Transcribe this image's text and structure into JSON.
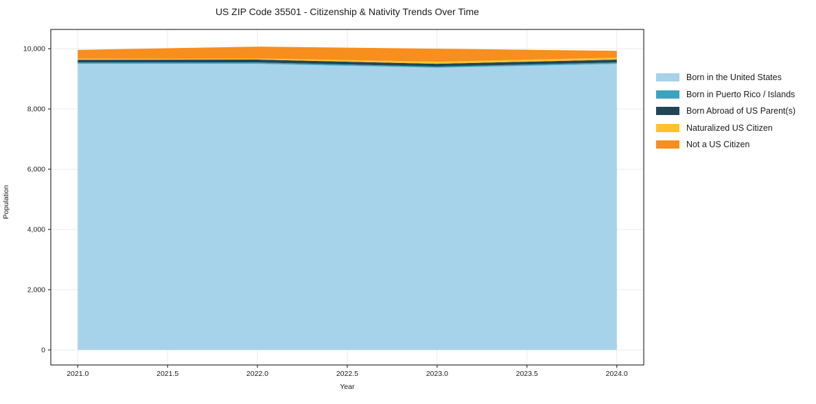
{
  "figure": {
    "background": "#ffffff",
    "text_color": "#1a1a1a",
    "axis_color": "#2e2e2e",
    "grid_color": "#ebebeb"
  },
  "chart_data": {
    "type": "area",
    "stacked": true,
    "title": "US ZIP Code 35501 - Citizenship & Nativity Trends Over Time",
    "xlabel": "Year",
    "ylabel": "Population",
    "x": [
      2021,
      2022,
      2023,
      2024
    ],
    "series": [
      {
        "name": "Born in the United States",
        "color": "#a7d3ea",
        "values": [
          9500,
          9500,
          9370,
          9500
        ]
      },
      {
        "name": "Born in Puerto Rico / Islands",
        "color": "#3ba3c0",
        "values": [
          45,
          45,
          40,
          45
        ]
      },
      {
        "name": "Born Abroad of US Parent(s)",
        "color": "#204656",
        "values": [
          90,
          95,
          90,
          95
        ]
      },
      {
        "name": "Naturalized US Citizen",
        "color": "#fbc22d",
        "values": [
          35,
          35,
          70,
          65
        ]
      },
      {
        "name": "Not a US Citizen",
        "color": "#f78e1e",
        "values": [
          290,
          395,
          430,
          225
        ]
      }
    ],
    "totals": [
      9960,
      10070,
      10000,
      9930
    ],
    "xticks": {
      "values": [
        2021.0,
        2021.5,
        2022.0,
        2022.5,
        2023.0,
        2023.5,
        2024.0
      ],
      "labels": [
        "2021.0",
        "2021.5",
        "2022.0",
        "2022.5",
        "2023.0",
        "2023.5",
        "2024.0"
      ]
    },
    "yticks": {
      "values": [
        0,
        2000,
        4000,
        6000,
        8000,
        10000
      ],
      "labels": [
        "0",
        "2,000",
        "4,000",
        "6,000",
        "8,000",
        "10,000"
      ]
    },
    "xlim": [
      2020.85,
      2024.15
    ],
    "ylim": [
      -500,
      10640
    ],
    "grid": true,
    "legend_position": "right"
  }
}
